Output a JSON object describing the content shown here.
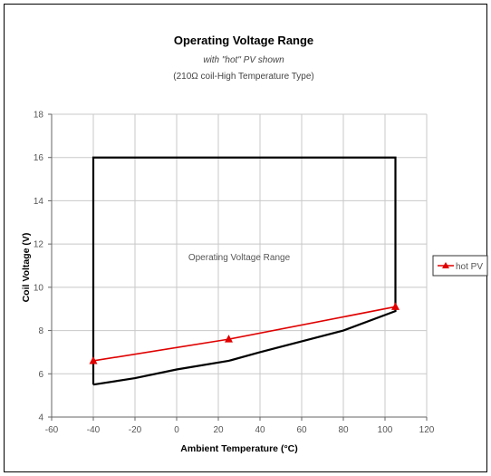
{
  "chart_data": {
    "type": "line",
    "title": "Operating Voltage Range",
    "subtitle_1": "with \"hot\" PV shown",
    "subtitle_2": "(210Ω coil-High Temperature Type)",
    "xlabel": "Ambient Temperature (°C)",
    "ylabel": "Coil Voltage (V)",
    "xlim": [
      -60,
      120
    ],
    "ylim": [
      4,
      18
    ],
    "x_ticks": [
      -60,
      -40,
      -20,
      0,
      20,
      40,
      60,
      80,
      100,
      120
    ],
    "y_ticks": [
      4,
      6,
      8,
      10,
      12,
      14,
      16,
      18
    ],
    "grid": "horizontal and vertical",
    "legend_position": "right",
    "annotation": "Operating Voltage Range",
    "series": [
      {
        "name": "hot PV",
        "color": "#e00000",
        "marker": "triangle",
        "x": [
          -40,
          25,
          105
        ],
        "y": [
          6.6,
          7.6,
          9.1
        ]
      }
    ],
    "boundary": {
      "color": "#000000",
      "x": [
        -40,
        -40,
        105,
        105,
        80,
        40,
        25,
        0,
        -20,
        -40
      ],
      "y": [
        5.5,
        16,
        16,
        8.9,
        8.0,
        7.0,
        6.6,
        6.2,
        5.8,
        5.5
      ]
    }
  }
}
